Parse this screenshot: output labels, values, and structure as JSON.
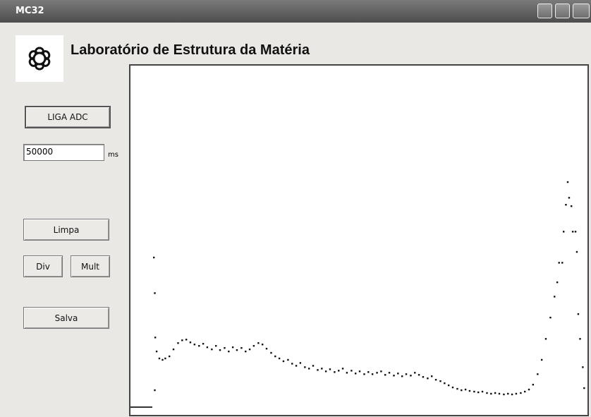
{
  "window": {
    "title": "MC32"
  },
  "header": {
    "title": "Laboratório de Estrutura da Matéria"
  },
  "controls": {
    "start_button": "LIGA ADC",
    "time_input": "50000",
    "time_unit": "ms",
    "clear_button": "Limpa",
    "div_button": "Div",
    "mult_button": "Mult",
    "save_button": "Salva"
  },
  "chart_data": {
    "type": "scatter",
    "color": "#111111",
    "xlim": [
      0,
      100
    ],
    "ylim": [
      0,
      100
    ],
    "x": [
      5.1,
      5.3,
      5.4,
      5.3,
      5.7,
      6.3,
      7.0,
      7.6,
      8.5,
      9.4,
      10.4,
      11.3,
      12.2,
      13.1,
      14.0,
      15.0,
      15.9,
      16.8,
      17.8,
      18.7,
      19.6,
      20.6,
      21.5,
      22.4,
      23.3,
      24.3,
      25.2,
      26.1,
      27.0,
      28.0,
      28.9,
      29.8,
      30.8,
      31.7,
      32.6,
      33.5,
      34.5,
      35.4,
      36.3,
      37.2,
      38.2,
      39.1,
      40.0,
      41.0,
      41.9,
      42.8,
      43.7,
      44.7,
      45.6,
      46.5,
      47.4,
      48.4,
      49.3,
      50.2,
      51.2,
      52.1,
      53.0,
      54.0,
      54.9,
      55.8,
      56.7,
      57.7,
      58.6,
      59.5,
      60.4,
      61.4,
      62.3,
      63.2,
      64.1,
      65.1,
      66.0,
      66.9,
      67.9,
      68.8,
      69.7,
      70.6,
      71.6,
      72.5,
      73.4,
      74.3,
      75.3,
      76.2,
      77.1,
      78.1,
      79.0,
      79.9,
      80.8,
      81.8,
      82.7,
      83.6,
      84.5,
      85.5,
      86.4,
      87.3,
      88.2,
      89.2,
      90.1,
      91.0,
      92.0,
      92.9,
      93.5,
      93.9,
      94.6,
      94.9,
      95.4,
      95.8,
      96.1,
      96.6,
      96.9,
      97.5,
      97.8,
      98.1,
      98.5,
      99.1,
      99.4
    ],
    "values": [
      45.1,
      34.9,
      22.2,
      7.1,
      18.2,
      16.2,
      15.8,
      16.2,
      16.8,
      18.8,
      20.6,
      21.4,
      21.6,
      20.8,
      20.2,
      19.8,
      20.4,
      19.4,
      18.8,
      19.8,
      18.6,
      19.2,
      18.2,
      19.4,
      18.6,
      19.2,
      18.2,
      18.8,
      19.8,
      20.6,
      20.2,
      19.0,
      17.8,
      16.8,
      16.2,
      15.4,
      15.8,
      14.7,
      14.1,
      14.9,
      13.7,
      13.3,
      14.1,
      12.9,
      13.3,
      12.5,
      13.1,
      12.3,
      12.7,
      13.3,
      12.1,
      12.7,
      11.9,
      12.5,
      11.7,
      12.3,
      11.7,
      12.1,
      12.5,
      11.5,
      12.1,
      11.3,
      11.9,
      11.1,
      11.7,
      11.3,
      12.1,
      11.5,
      10.9,
      10.5,
      11.1,
      10.1,
      9.7,
      9.1,
      8.5,
      7.9,
      7.5,
      7.1,
      7.3,
      6.9,
      6.7,
      6.5,
      6.7,
      6.3,
      6.1,
      6.3,
      6.1,
      5.9,
      6.1,
      5.9,
      6.1,
      6.3,
      6.7,
      7.3,
      8.7,
      11.7,
      15.8,
      21.8,
      27.9,
      33.9,
      38.0,
      43.6,
      43.6,
      52.5,
      60.2,
      66.7,
      62.2,
      59.8,
      52.5,
      52.5,
      46.7,
      28.9,
      21.8,
      13.7,
      7.7
    ]
  }
}
